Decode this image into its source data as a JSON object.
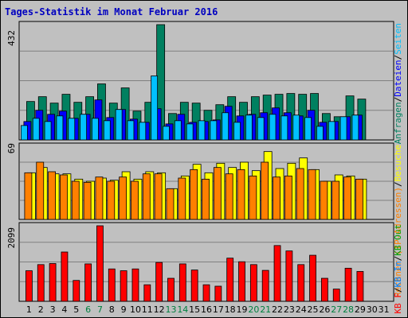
{
  "title": "Tages-Statistik im Monat Februar 2016",
  "colors": {
    "weekday": "#000000",
    "weekend": "#008040",
    "hits": "#008060",
    "files": "#0000ff",
    "pages": "#00c0ff",
    "visits": "#ffff00",
    "sites": "#ff8000",
    "kb": "#ff0000",
    "kb_in": "#0080ff",
    "kb_out": "#00a000"
  },
  "chart_data": [
    {
      "type": "bar",
      "panel": "top",
      "ymax_label": "432",
      "right_legend": [
        {
          "text": "Anfragen",
          "color": "#008060"
        },
        {
          "text": "/",
          "color": "#000000"
        },
        {
          "text": "Dateien",
          "color": "#0000ff"
        },
        {
          "text": "/",
          "color": "#000000"
        },
        {
          "text": "Seiten",
          "color": "#00c0ff"
        }
      ],
      "ylim": [
        0,
        432
      ],
      "categories": [
        "1",
        "2",
        "3",
        "4",
        "5",
        "6",
        "7",
        "8",
        "9",
        "10",
        "11",
        "12",
        "13",
        "14",
        "15",
        "16",
        "17",
        "18",
        "19",
        "20",
        "21",
        "22",
        "23",
        "24",
        "25",
        "26",
        "27",
        "28",
        "29",
        "30",
        "31"
      ],
      "weekend_days": [
        "6",
        "7",
        "13",
        "14",
        "20",
        "21",
        "27",
        "28"
      ],
      "series": [
        {
          "values": [
            144,
            162,
            138,
            171,
            141,
            162,
            210,
            138,
            195,
            108,
            141,
            432,
            99,
            141,
            138,
            111,
            132,
            162,
            141,
            162,
            168,
            171,
            174,
            171,
            174,
            99,
            87,
            165,
            153,
            null,
            null
          ]
        },
        {
          "values": [
            69,
            111,
            96,
            108,
            81,
            96,
            150,
            84,
            114,
            78,
            66,
            117,
            60,
            96,
            66,
            69,
            75,
            126,
            90,
            96,
            102,
            120,
            102,
            90,
            111,
            66,
            69,
            87,
            93,
            null,
            null
          ]
        },
        {
          "values": [
            54,
            81,
            69,
            90,
            81,
            96,
            81,
            72,
            114,
            72,
            66,
            240,
            51,
            72,
            60,
            72,
            72,
            102,
            66,
            93,
            84,
            96,
            90,
            93,
            84,
            51,
            69,
            87,
            93,
            null,
            null
          ]
        }
      ]
    },
    {
      "type": "bar",
      "panel": "middle",
      "ymax_label": "69",
      "right_legend": [
        {
          "text": "Rechner (IP-Adressen)",
          "color": "#ff8000"
        },
        {
          "text": "/",
          "color": "#000000"
        },
        {
          "text": "Besuche",
          "color": "#ffff00"
        }
      ],
      "ylim": [
        0,
        69
      ],
      "categories": [
        "1",
        "2",
        "3",
        "4",
        "5",
        "6",
        "7",
        "8",
        "9",
        "10",
        "11",
        "12",
        "13",
        "14",
        "15",
        "16",
        "17",
        "18",
        "19",
        "20",
        "21",
        "22",
        "23",
        "24",
        "25",
        "26",
        "27",
        "28",
        "29",
        "30",
        "31"
      ],
      "weekend_days": [
        "6",
        "7",
        "13",
        "14",
        "20",
        "21",
        "27",
        "28"
      ],
      "series": [
        {
          "values": [
            44,
            49,
            43,
            43,
            38,
            36,
            39,
            37,
            45,
            38,
            45,
            44,
            29,
            41,
            52,
            44,
            53,
            49,
            54,
            46,
            64,
            48,
            53,
            58,
            47,
            36,
            42,
            41,
            38,
            null,
            null
          ]
        },
        {
          "values": [
            44,
            54,
            45,
            42,
            36,
            35,
            40,
            36,
            40,
            36,
            43,
            43,
            29,
            39,
            47,
            38,
            49,
            43,
            47,
            41,
            54,
            40,
            41,
            48,
            47,
            36,
            36,
            40,
            38,
            null,
            null
          ]
        }
      ]
    },
    {
      "type": "bar",
      "panel": "bottom",
      "ymax_label": "2099",
      "right_legend": [
        {
          "text": "KB F",
          "color": "#ff0000"
        },
        {
          "text": "/",
          "color": "#000000"
        },
        {
          "text": "KB In",
          "color": "#0080ff"
        },
        {
          "text": "/",
          "color": "#000000"
        },
        {
          "text": "KB Out",
          "color": "#00a000"
        }
      ],
      "ylim": [
        0,
        2099
      ],
      "categories": [
        "1",
        "2",
        "3",
        "4",
        "5",
        "6",
        "7",
        "8",
        "9",
        "10",
        "11",
        "12",
        "13",
        "14",
        "15",
        "16",
        "17",
        "18",
        "19",
        "20",
        "21",
        "22",
        "23",
        "24",
        "25",
        "26",
        "27",
        "28",
        "29",
        "30",
        "31"
      ],
      "weekend_days": [
        "6",
        "7",
        "13",
        "14",
        "20",
        "21",
        "27",
        "28"
      ],
      "series": [
        {
          "values": [
            850,
            1020,
            1050,
            1370,
            580,
            1040,
            2099,
            900,
            850,
            900,
            460,
            1080,
            640,
            1040,
            870,
            460,
            420,
            1200,
            1100,
            1020,
            860,
            1550,
            1400,
            1020,
            1280,
            640,
            340,
            920,
            830,
            null,
            null
          ]
        }
      ]
    }
  ]
}
